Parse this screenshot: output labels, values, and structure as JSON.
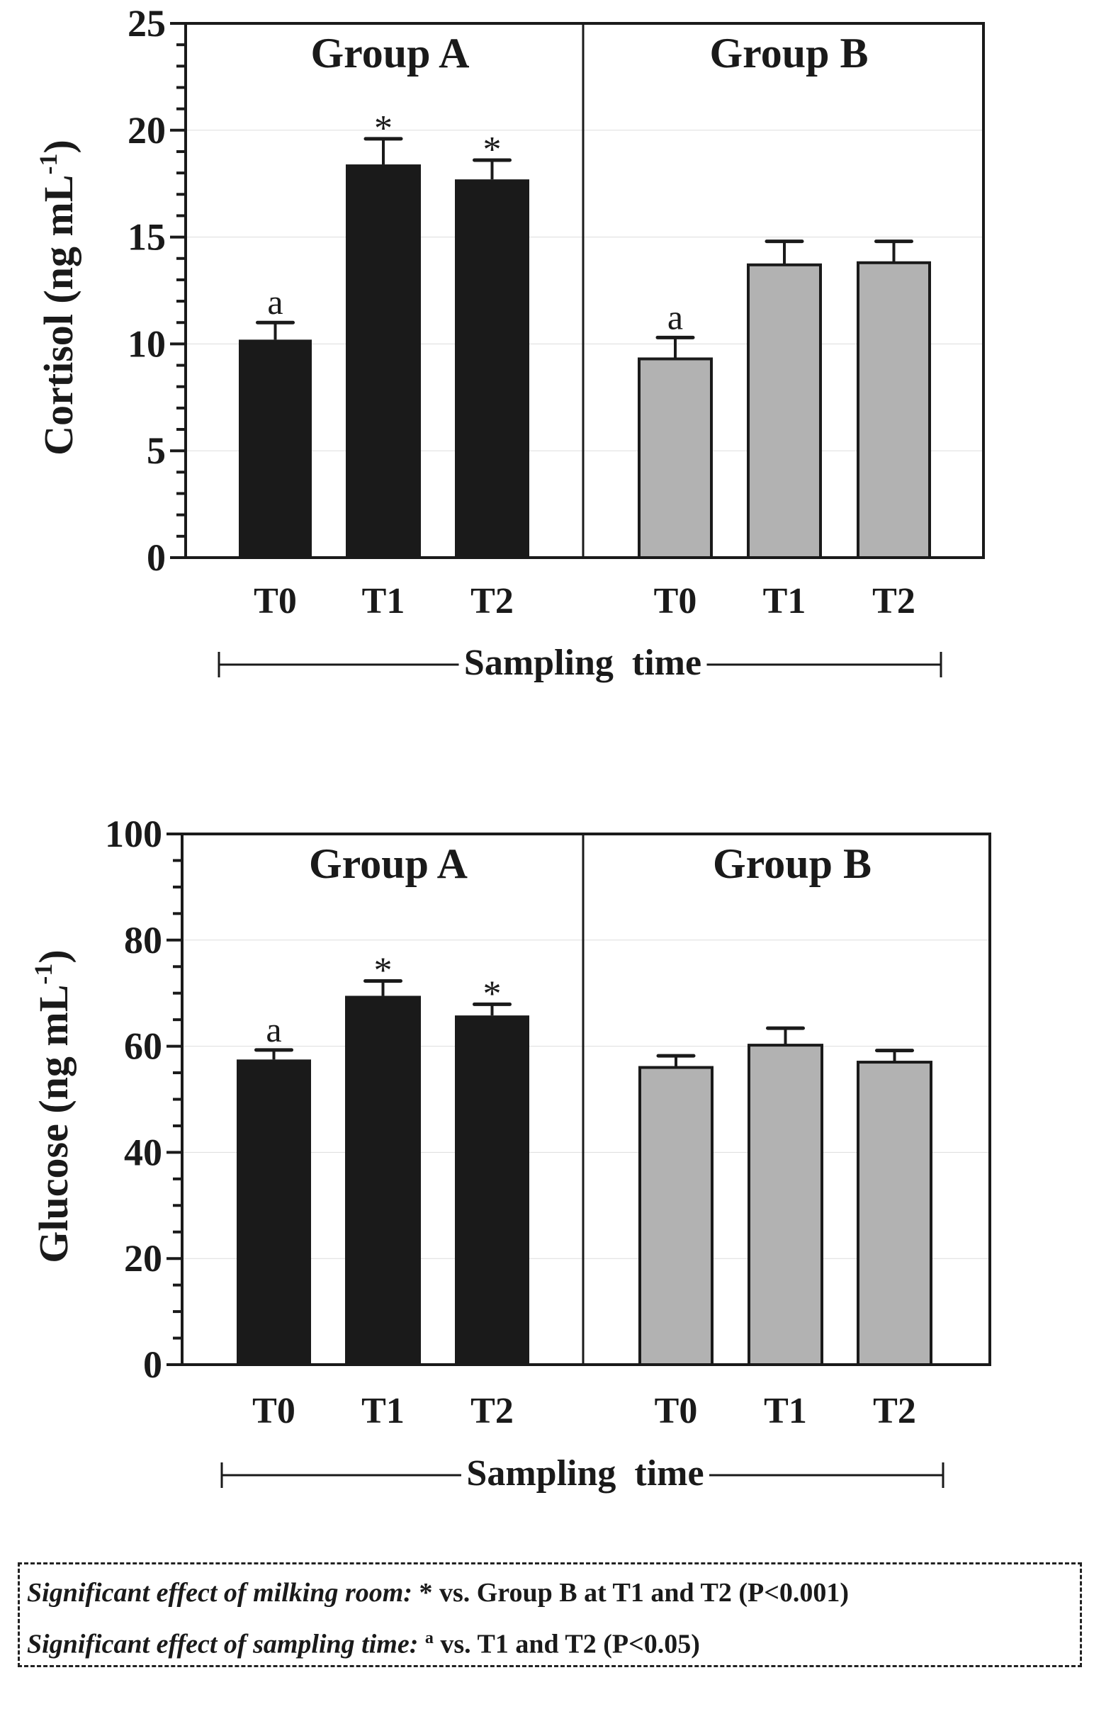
{
  "colors": {
    "groupA": "#1a1a1a",
    "groupB": "#b2b2b2",
    "axis": "#1a1a1a"
  },
  "chart_data": [
    {
      "type": "bar",
      "ylabel_main": "Cortisol (ng mL",
      "ylabel_sup": "-1",
      "ylabel_close": ")",
      "xlabel": "Sampling  time",
      "ylim": [
        0,
        25
      ],
      "yticks": [
        0,
        5,
        10,
        15,
        20,
        25
      ],
      "yminor_step": 1,
      "groups": [
        {
          "name": "Group A",
          "color": "#1a1a1a",
          "categories": [
            "T0",
            "T1",
            "T2"
          ],
          "values": [
            10.2,
            18.4,
            17.7
          ],
          "errors": [
            0.8,
            1.2,
            0.9
          ],
          "annotations": [
            "a",
            "*",
            "*"
          ]
        },
        {
          "name": "Group B",
          "color": "#b2b2b2",
          "categories": [
            "T0",
            "T1",
            "T2"
          ],
          "values": [
            9.3,
            13.7,
            13.8
          ],
          "errors": [
            1.0,
            1.1,
            1.0
          ],
          "annotations": [
            "a",
            "",
            ""
          ]
        }
      ]
    },
    {
      "type": "bar",
      "ylabel_main": "Glucose (ng mL",
      "ylabel_sup": "-1",
      "ylabel_close": ")",
      "xlabel": "Sampling  time",
      "ylim": [
        0,
        100
      ],
      "yticks": [
        0,
        20,
        40,
        60,
        80,
        100
      ],
      "yminor_step": 5,
      "groups": [
        {
          "name": "Group A",
          "color": "#1a1a1a",
          "categories": [
            "T0",
            "T1",
            "T2"
          ],
          "values": [
            57.5,
            69.5,
            65.8
          ],
          "errors": [
            1.8,
            2.8,
            2.1
          ],
          "annotations": [
            "a",
            "*",
            "*"
          ]
        },
        {
          "name": "Group B",
          "color": "#b2b2b2",
          "categories": [
            "T0",
            "T1",
            "T2"
          ],
          "values": [
            56.0,
            60.2,
            57.0
          ],
          "errors": [
            2.2,
            3.2,
            2.2
          ],
          "annotations": [
            "",
            "",
            ""
          ]
        }
      ]
    }
  ],
  "footnote": {
    "line1_italic": "Significant effect of milking room:",
    "line1_mark": "*",
    "line1_rest": " vs. Group B at T1 and T2 (P<0.001)",
    "line2_italic": "Significant effect of sampling time:",
    "line2_mark": "a",
    "line2_rest": " vs. T1 and T2 (P<0.05)"
  }
}
